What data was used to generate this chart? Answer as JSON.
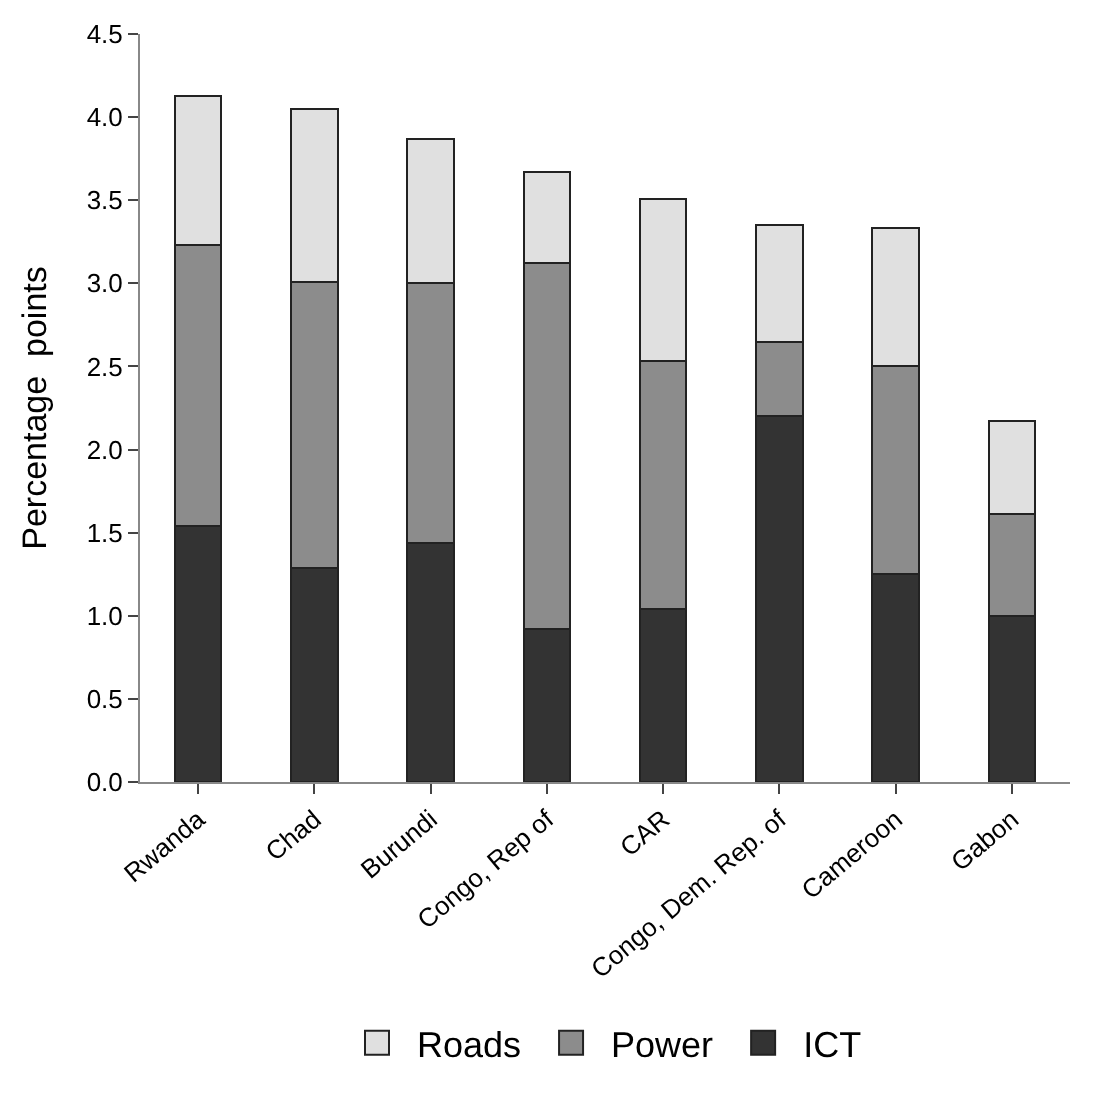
{
  "chart_data": {
    "type": "bar",
    "stacked": true,
    "ylabel": "Percentage  points",
    "categories": [
      "Rwanda",
      "Chad",
      "Burundi",
      "Congo, Rep of",
      "CAR",
      "Congo, Dem. Rep. of",
      "Cameroon",
      "Gabon"
    ],
    "series": [
      {
        "name": "ICT",
        "color": "#333333",
        "values": [
          1.54,
          1.29,
          1.44,
          0.92,
          1.04,
          2.2,
          1.25,
          1.0
        ]
      },
      {
        "name": "Power",
        "color": "#8c8c8c",
        "values": [
          1.69,
          1.72,
          1.56,
          2.2,
          1.49,
          0.45,
          1.25,
          0.61
        ]
      },
      {
        "name": "Roads",
        "color": "#e0e0e0",
        "values": [
          0.9,
          1.04,
          0.87,
          0.55,
          0.98,
          0.7,
          0.83,
          0.56
        ]
      }
    ],
    "ylim": [
      0,
      4.5
    ],
    "yticks": [
      {
        "value": 0,
        "label": "0.0"
      },
      {
        "value": 0.5,
        "label": "0.5"
      },
      {
        "value": 1,
        "label": "1.0"
      },
      {
        "value": 1.5,
        "label": "1.5"
      },
      {
        "value": 2,
        "label": "2.0"
      },
      {
        "value": 2.5,
        "label": "2.5"
      },
      {
        "value": 3,
        "label": "3.0"
      },
      {
        "value": 3.5,
        "label": "3.5"
      },
      {
        "value": 4,
        "label": "4.0"
      },
      {
        "value": 4.5,
        "label": "4.5"
      }
    ],
    "legend": "bottom"
  }
}
